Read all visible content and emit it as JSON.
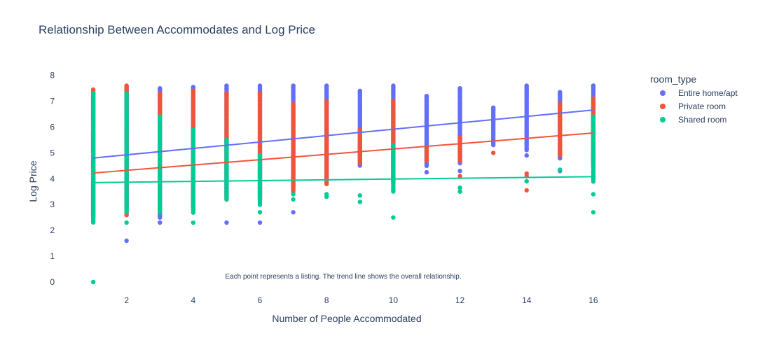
{
  "chart_data": {
    "type": "scatter",
    "title": "Relationship Between Accommodates and Log Price",
    "xlabel": "Number of People Accommodated",
    "ylabel": "Log Price",
    "annotation": "Each point represents a listing. The trend line shows the overall relationship.",
    "xlim": [
      0.2,
      16.8
    ],
    "ylim": [
      -0.3,
      8.1
    ],
    "x_ticks": [
      2,
      4,
      6,
      8,
      10,
      12,
      14,
      16
    ],
    "y_ticks": [
      0,
      1,
      2,
      3,
      4,
      5,
      6,
      7,
      8
    ],
    "grid": false,
    "legend": {
      "title": "room_type",
      "position": "top-right"
    },
    "series": [
      {
        "name": "Entire home/apt",
        "color": "#636efa",
        "trend": {
          "x": [
            1,
            16
          ],
          "y": [
            4.8,
            6.66
          ]
        },
        "ranges": [
          {
            "x": 1,
            "min": 2.5,
            "max": 7.3
          },
          {
            "x": 2,
            "min": 2.9,
            "max": 7.55
          },
          {
            "x": 3,
            "min": 2.5,
            "max": 7.5
          },
          {
            "x": 4,
            "min": 2.9,
            "max": 7.55
          },
          {
            "x": 5,
            "min": 3.3,
            "max": 7.6
          },
          {
            "x": 6,
            "min": 3.3,
            "max": 7.6
          },
          {
            "x": 7,
            "min": 3.7,
            "max": 7.6
          },
          {
            "x": 8,
            "min": 3.9,
            "max": 7.6
          },
          {
            "x": 9,
            "min": 4.5,
            "max": 7.4
          },
          {
            "x": 10,
            "min": 3.9,
            "max": 7.6
          },
          {
            "x": 11,
            "min": 4.5,
            "max": 7.2
          },
          {
            "x": 12,
            "min": 4.6,
            "max": 7.5
          },
          {
            "x": 13,
            "min": 5.3,
            "max": 6.75
          },
          {
            "x": 14,
            "min": 5.1,
            "max": 7.6
          },
          {
            "x": 15,
            "min": 4.8,
            "max": 7.35
          },
          {
            "x": 16,
            "min": 4.6,
            "max": 7.6
          }
        ],
        "outliers": [
          {
            "x": 2,
            "y": 1.6
          },
          {
            "x": 3,
            "y": 2.3
          },
          {
            "x": 5,
            "y": 2.3
          },
          {
            "x": 6,
            "y": 2.3
          },
          {
            "x": 7,
            "y": 2.7
          },
          {
            "x": 11,
            "y": 4.25
          },
          {
            "x": 12,
            "y": 4.3
          },
          {
            "x": 14,
            "y": 4.9
          },
          {
            "x": 15,
            "y": 4.3
          },
          {
            "x": 16,
            "y": 4.25
          }
        ]
      },
      {
        "name": "Private room",
        "color": "#ef553b",
        "trend": {
          "x": [
            1,
            16
          ],
          "y": [
            4.22,
            5.77
          ]
        },
        "ranges": [
          {
            "x": 1,
            "min": 2.6,
            "max": 7.45
          },
          {
            "x": 2,
            "min": 2.6,
            "max": 7.6
          },
          {
            "x": 3,
            "min": 2.7,
            "max": 7.3
          },
          {
            "x": 4,
            "min": 2.9,
            "max": 7.4
          },
          {
            "x": 5,
            "min": 3.2,
            "max": 7.3
          },
          {
            "x": 6,
            "min": 3.2,
            "max": 7.3
          },
          {
            "x": 7,
            "min": 3.5,
            "max": 6.9
          },
          {
            "x": 8,
            "min": 3.8,
            "max": 7.0
          },
          {
            "x": 9,
            "min": 4.6,
            "max": 5.9
          },
          {
            "x": 10,
            "min": 3.9,
            "max": 7.0
          },
          {
            "x": 11,
            "min": 4.7,
            "max": 5.2
          },
          {
            "x": 12,
            "min": 4.7,
            "max": 5.6
          },
          {
            "x": 15,
            "min": 4.9,
            "max": 6.9
          },
          {
            "x": 16,
            "min": 4.5,
            "max": 7.1
          }
        ],
        "outliers": [
          {
            "x": 13,
            "y": 5.0
          },
          {
            "x": 14,
            "y": 4.2
          },
          {
            "x": 14,
            "y": 4.1
          },
          {
            "x": 14,
            "y": 3.55
          },
          {
            "x": 12,
            "y": 4.1
          }
        ]
      },
      {
        "name": "Shared room",
        "color": "#00cc96",
        "trend": {
          "x": [
            1,
            16
          ],
          "y": [
            3.85,
            4.08
          ]
        },
        "ranges": [
          {
            "x": 1,
            "min": 2.3,
            "max": 7.3
          },
          {
            "x": 2,
            "min": 2.7,
            "max": 7.3
          },
          {
            "x": 3,
            "min": 2.8,
            "max": 6.4
          },
          {
            "x": 4,
            "min": 2.7,
            "max": 5.9
          },
          {
            "x": 5,
            "min": 3.2,
            "max": 5.5
          },
          {
            "x": 6,
            "min": 3.0,
            "max": 4.9
          },
          {
            "x": 10,
            "min": 3.5,
            "max": 5.3
          },
          {
            "x": 16,
            "min": 3.9,
            "max": 6.4
          }
        ],
        "outliers": [
          {
            "x": 1,
            "y": 0.0
          },
          {
            "x": 2,
            "y": 2.3
          },
          {
            "x": 3,
            "y": 2.7
          },
          {
            "x": 4,
            "y": 2.3
          },
          {
            "x": 6,
            "y": 2.7
          },
          {
            "x": 7,
            "y": 3.2
          },
          {
            "x": 7,
            "y": 3.4
          },
          {
            "x": 8,
            "y": 3.3
          },
          {
            "x": 8,
            "y": 3.4
          },
          {
            "x": 9,
            "y": 3.1
          },
          {
            "x": 9,
            "y": 3.35
          },
          {
            "x": 10,
            "y": 2.5
          },
          {
            "x": 10,
            "y": 3.6
          },
          {
            "x": 12,
            "y": 3.5
          },
          {
            "x": 12,
            "y": 3.65
          },
          {
            "x": 14,
            "y": 3.9
          },
          {
            "x": 15,
            "y": 4.35
          },
          {
            "x": 16,
            "y": 2.7
          },
          {
            "x": 16,
            "y": 3.4
          }
        ]
      }
    ]
  }
}
